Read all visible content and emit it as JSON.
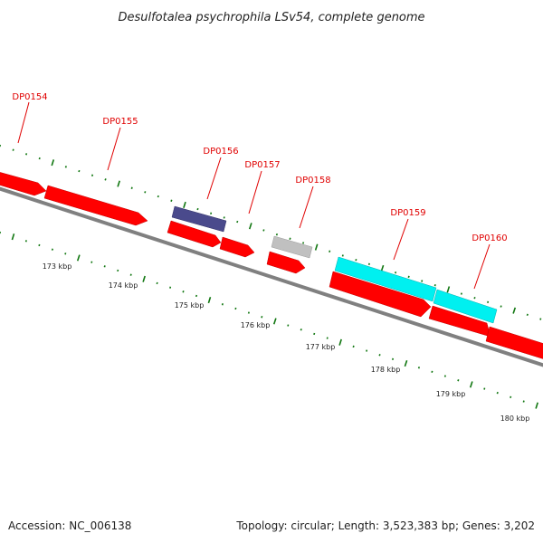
{
  "title": "Desulfotalea psychrophila LSv54, complete genome",
  "footer": {
    "accession": "Accession: NC_006138",
    "summary": "Topology: circular; Length: 3,523,383 bp; Genes: 3,202"
  },
  "colors": {
    "cds": "#ff0000",
    "backbone": "#808080",
    "tick": "#117711",
    "label": "#e00000",
    "purple_feature": "#4a4a8c",
    "gray_feature": "#c0c0c0",
    "cyan_feature": "#00f0f0"
  },
  "genes": [
    {
      "label": "DP0154"
    },
    {
      "label": "DP0155"
    },
    {
      "label": "DP0156"
    },
    {
      "label": "DP0157"
    },
    {
      "label": "DP0158"
    },
    {
      "label": "DP0159"
    },
    {
      "label": "DP0160"
    }
  ],
  "scale": [
    {
      "label": "173 kbp"
    },
    {
      "label": "174 kbp"
    },
    {
      "label": "175 kbp"
    },
    {
      "label": "176 kbp"
    },
    {
      "label": "177 kbp"
    },
    {
      "label": "178 kbp"
    },
    {
      "label": "179 kbp"
    },
    {
      "label": "180 kbp"
    }
  ]
}
